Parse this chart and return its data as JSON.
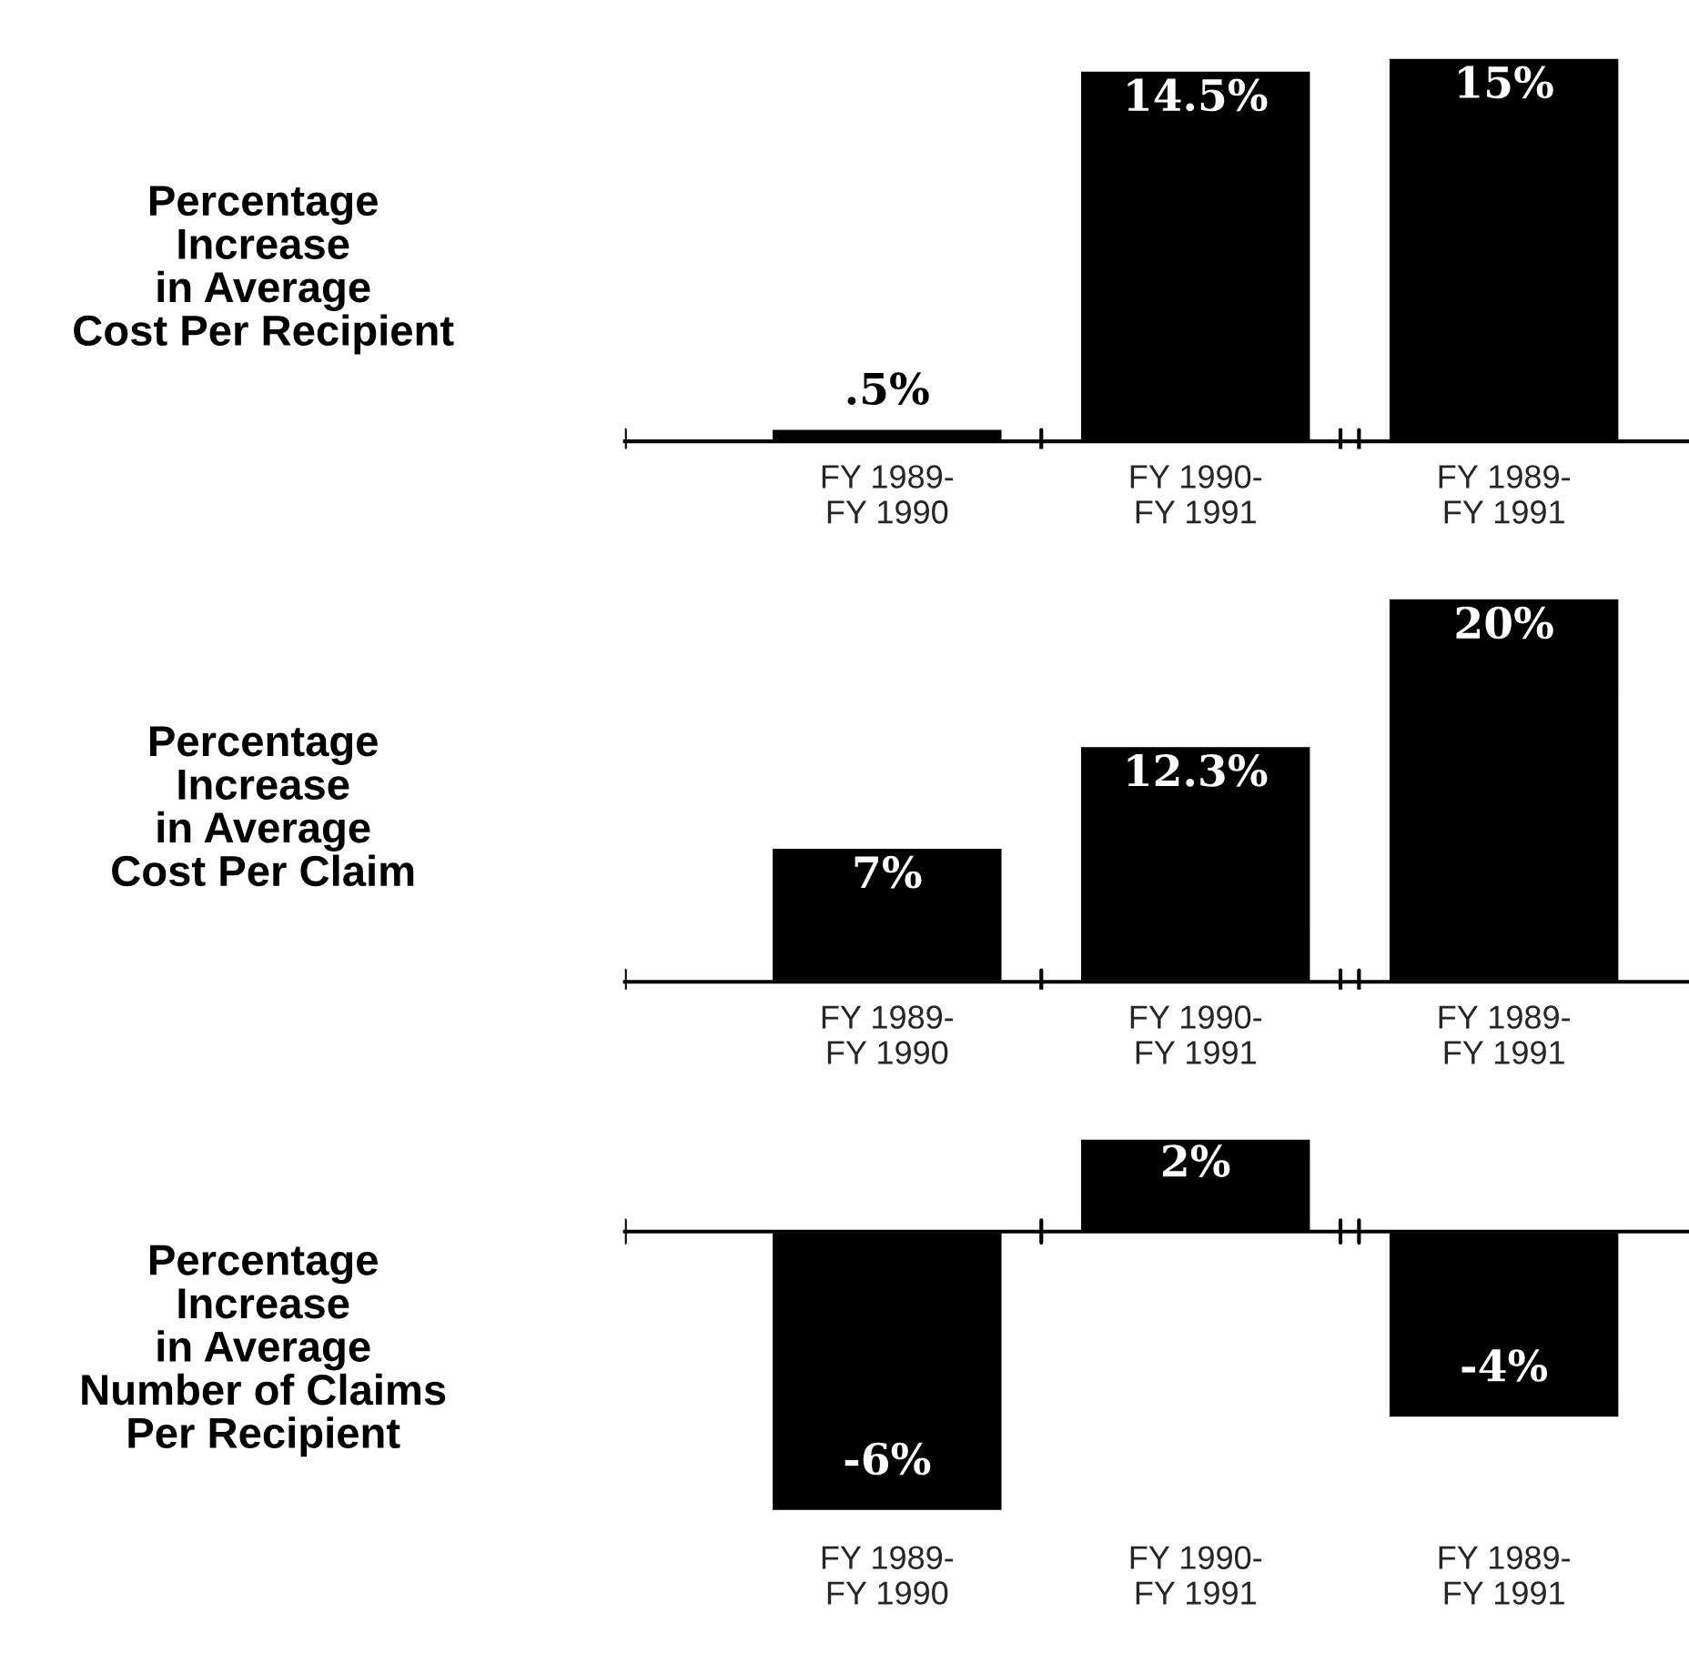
{
  "chart_data": [
    {
      "type": "bar",
      "title": "Percentage\nIncrease\nin Average\nCost Per Recipient",
      "categories": [
        "FY 1989-\nFY 1990",
        "FY 1990-\nFY 1991",
        "FY 1989-\nFY 1991"
      ],
      "values": [
        0.5,
        14.5,
        15
      ],
      "value_labels": [
        ".5%",
        "14.5%",
        "15%"
      ],
      "color": "#000000"
    },
    {
      "type": "bar",
      "title": "Percentage\nIncrease\nin Average\nCost Per Claim",
      "categories": [
        "FY 1989-\nFY 1990",
        "FY 1990-\nFY 1991",
        "FY 1989-\nFY 1991"
      ],
      "values": [
        7,
        12.3,
        20
      ],
      "value_labels": [
        "7%",
        "12.3%",
        "20%"
      ],
      "color": "#000000"
    },
    {
      "type": "bar",
      "title": "Percentage\nIncrease\nin Average\nNumber of Claims\nPer Recipient",
      "categories": [
        "FY 1989-\nFY 1990",
        "FY 1990-\nFY 1991",
        "FY 1989-\nFY 1991"
      ],
      "values": [
        -6,
        2,
        -4
      ],
      "value_labels": [
        "-6%",
        "2%",
        "-4%"
      ],
      "color": "#000000"
    }
  ]
}
